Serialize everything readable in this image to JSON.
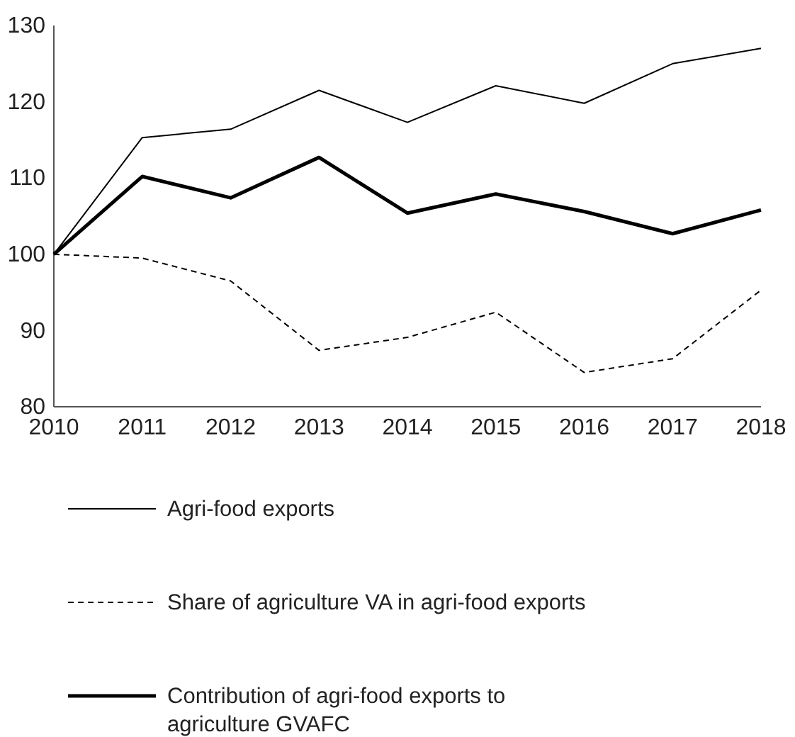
{
  "chart_data": {
    "type": "line",
    "x": [
      2010,
      2011,
      2012,
      2013,
      2014,
      2015,
      2016,
      2017,
      2018
    ],
    "xlim": [
      2010,
      2018
    ],
    "xticks": [
      2010,
      2011,
      2012,
      2013,
      2014,
      2015,
      2016,
      2017,
      2018
    ],
    "ylim": [
      80,
      130
    ],
    "yticks": [
      80,
      90,
      100,
      110,
      120,
      130
    ],
    "grid": false,
    "legend": "bottom",
    "marker": "none",
    "series": [
      {
        "name": "Agri-food exports",
        "color": "#000000",
        "line_style": "solid",
        "values": [
          100,
          115.3,
          116.4,
          121.5,
          117.3,
          122.1,
          119.8,
          125,
          127
        ]
      },
      {
        "name": "Share of agriculture VA in agri-food exports",
        "color": "#000000",
        "line_style": "dashed",
        "values": [
          100,
          99.5,
          96.5,
          87.4,
          89.1,
          92.4,
          84.5,
          86.3,
          95.3
        ]
      },
      {
        "name": "Contribution of agri-food exports to agriculture GVAFC",
        "color": "#000000",
        "line_style": "solid",
        "values": [
          100,
          110.2,
          107.4,
          112.7,
          105.4,
          107.9,
          105.6,
          102.7,
          105.8
        ]
      }
    ]
  }
}
